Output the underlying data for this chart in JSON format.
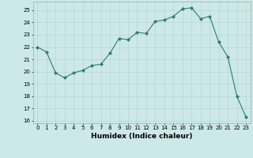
{
  "x": [
    0,
    1,
    2,
    3,
    4,
    5,
    6,
    7,
    8,
    9,
    10,
    11,
    12,
    13,
    14,
    15,
    16,
    17,
    18,
    19,
    20,
    21,
    22,
    23
  ],
  "y": [
    22.0,
    21.6,
    19.9,
    19.5,
    19.9,
    20.1,
    20.5,
    20.6,
    21.5,
    22.7,
    22.6,
    23.2,
    23.1,
    24.1,
    24.2,
    24.5,
    25.1,
    25.2,
    24.3,
    24.5,
    22.4,
    21.2,
    18.0,
    16.3
  ],
  "line_color": "#2e7d6e",
  "marker": "D",
  "marker_size": 2,
  "bg_color": "#cce8e8",
  "grid_color_major": "#b8d4d4",
  "grid_color_minor": "#d8ecec",
  "xlabel": "Humidex (Indice chaleur)",
  "xlim": [
    -0.5,
    23.5
  ],
  "ylim": [
    15.8,
    25.7
  ],
  "yticks": [
    16,
    17,
    18,
    19,
    20,
    21,
    22,
    23,
    24,
    25
  ],
  "xticks": [
    0,
    1,
    2,
    3,
    4,
    5,
    6,
    7,
    8,
    9,
    10,
    11,
    12,
    13,
    14,
    15,
    16,
    17,
    18,
    19,
    20,
    21,
    22,
    23
  ],
  "tick_fontsize": 5,
  "xlabel_fontsize": 6.5
}
